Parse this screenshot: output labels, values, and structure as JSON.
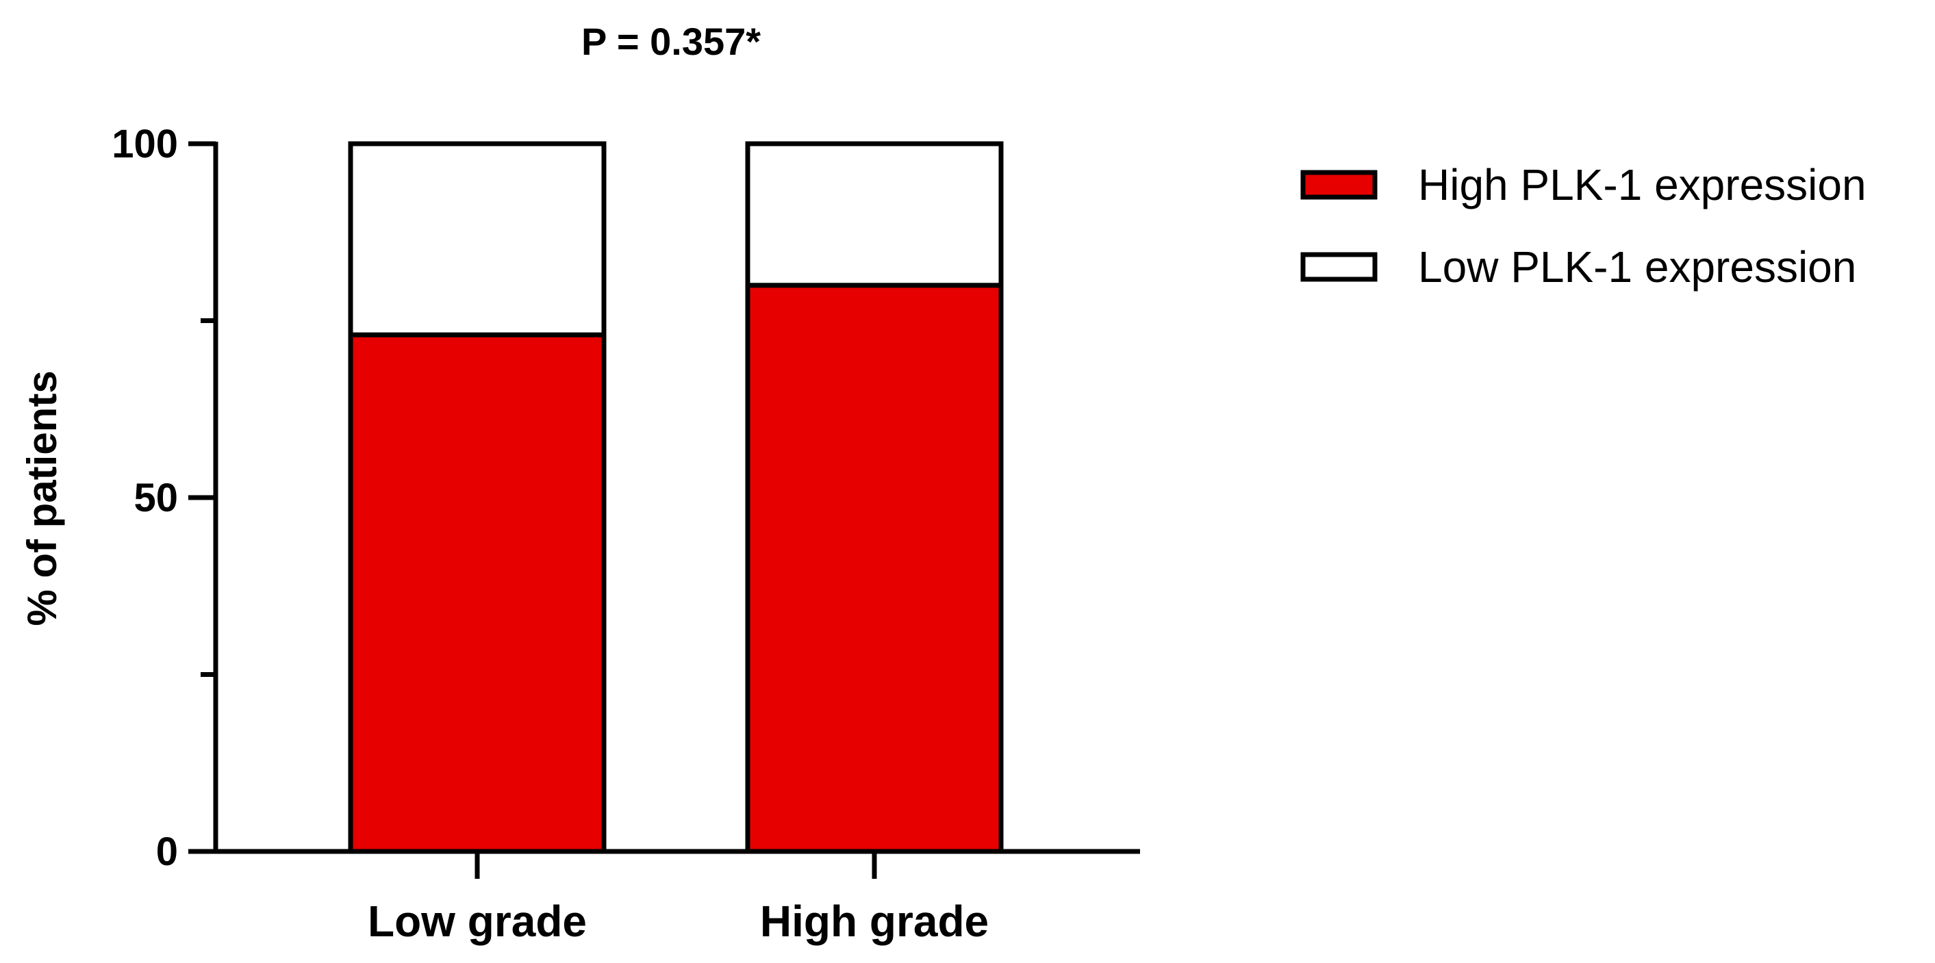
{
  "chart_data": {
    "type": "bar",
    "stacked": true,
    "title": "P = 0.357*",
    "xlabel": "",
    "ylabel": "% of patients",
    "ylim": [
      0,
      100
    ],
    "yticks": [
      0,
      50,
      100
    ],
    "ytick_labels": [
      "0",
      "50",
      "100"
    ],
    "categories": [
      "Low grade",
      "High grade"
    ],
    "series": [
      {
        "name": "High PLK-1 expression",
        "values": [
          73,
          80
        ],
        "color": "#e60000"
      },
      {
        "name": "Low PLK-1 expression",
        "values": [
          27,
          20
        ],
        "color": "#ffffff"
      }
    ],
    "legend_position": "top-right",
    "grid": false
  }
}
